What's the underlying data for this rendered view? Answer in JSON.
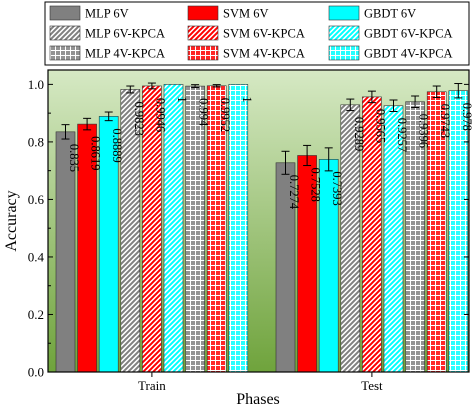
{
  "chart_data": {
    "type": "bar",
    "categories": [
      "Train",
      "Test"
    ],
    "xlabel": "Phases",
    "ylabel": "Accuracy",
    "ylim": [
      0,
      1.05
    ],
    "yticks": [
      "0.0",
      "0.2",
      "0.4",
      "0.6",
      "0.8",
      "1.0"
    ],
    "grid": false,
    "legend_position": "top",
    "background_gradient": [
      "#d6e9c4",
      "#6fa33c"
    ],
    "series": [
      {
        "name": "MLP 6V",
        "color": "#808080",
        "pattern": "solid",
        "values": [
          0.835,
          0.7274
        ],
        "errors": [
          0.025,
          0.04
        ],
        "labels": [
          "0.835",
          "0.7274"
        ]
      },
      {
        "name": "SVM 6V",
        "color": "#ff0000",
        "pattern": "solid",
        "values": [
          0.8619,
          0.7528
        ],
        "errors": [
          0.02,
          0.035
        ],
        "labels": [
          "0.8619",
          "0.7528"
        ]
      },
      {
        "name": "GBDT 6V",
        "color": "#00ffff",
        "pattern": "solid",
        "values": [
          0.8889,
          0.7393
        ],
        "errors": [
          0.015,
          0.04
        ],
        "labels": [
          "0.8889",
          "0.7393"
        ]
      },
      {
        "name": "MLP 6V-KPCA",
        "color": "#808080",
        "pattern": "diagonal",
        "values": [
          0.9823,
          0.9289
        ],
        "errors": [
          0.012,
          0.02
        ],
        "labels": [
          "0.9823",
          "0.9289"
        ]
      },
      {
        "name": "SVM 6V-KPCA",
        "color": "#ff0000",
        "pattern": "diagonal",
        "values": [
          0.9946,
          0.9565
        ],
        "errors": [
          0.01,
          0.02
        ],
        "labels": [
          "0.9946",
          "0.9565"
        ]
      },
      {
        "name": "GBDT 6V-KPCA",
        "color": "#00ffff",
        "pattern": "diagonal",
        "values": [
          1.0,
          0.9257
        ],
        "errors": [
          0.0,
          0.02
        ],
        "labels": [
          "1",
          "0.9257"
        ]
      },
      {
        "name": "MLP 4V-KPCA",
        "color": "#808080",
        "pattern": "grid",
        "values": [
          0.994,
          0.9396
        ],
        "errors": [
          0.005,
          0.02
        ],
        "labels": [
          "0.994",
          "0.9396"
        ]
      },
      {
        "name": "SVM 4V-KPCA",
        "color": "#ff0000",
        "pattern": "grid",
        "values": [
          0.9952,
          0.9743
        ],
        "errors": [
          0.004,
          0.02
        ],
        "labels": [
          "0.9952",
          "0.9743"
        ]
      },
      {
        "name": "GBDT 4V-KPCA",
        "color": "#00ffff",
        "pattern": "grid",
        "values": [
          1.0,
          0.978
        ],
        "errors": [
          0.0,
          0.025
        ],
        "labels": [
          "1",
          "0.978"
        ]
      }
    ]
  }
}
